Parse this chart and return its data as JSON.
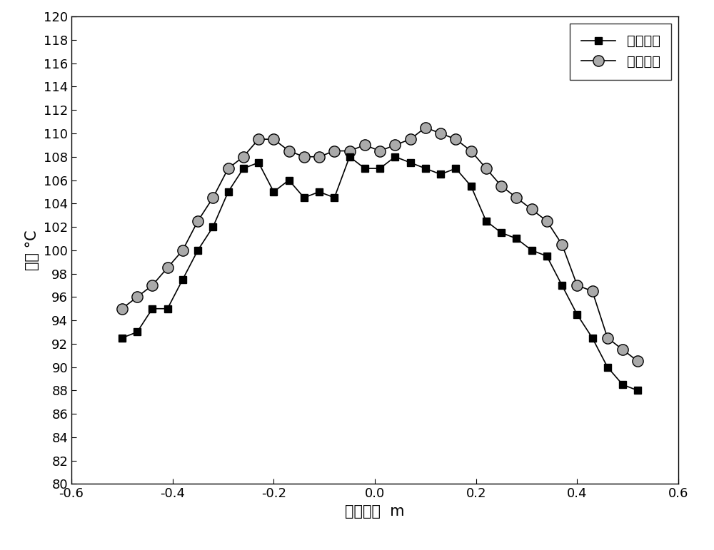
{
  "actual_x": [
    -0.5,
    -0.47,
    -0.44,
    -0.41,
    -0.38,
    -0.35,
    -0.32,
    -0.29,
    -0.26,
    -0.23,
    -0.2,
    -0.17,
    -0.14,
    -0.11,
    -0.08,
    -0.05,
    -0.02,
    0.01,
    0.04,
    0.07,
    0.1,
    0.13,
    0.16,
    0.19,
    0.22,
    0.25,
    0.28,
    0.31,
    0.34,
    0.37,
    0.4,
    0.43,
    0.46,
    0.49,
    0.52
  ],
  "actual_y": [
    92.5,
    93.0,
    95.0,
    95.0,
    97.5,
    100.0,
    102.0,
    105.0,
    107.0,
    107.5,
    105.0,
    106.0,
    104.5,
    105.0,
    104.5,
    108.0,
    107.0,
    107.0,
    108.0,
    107.5,
    107.0,
    106.5,
    107.0,
    105.5,
    102.5,
    101.5,
    101.0,
    100.0,
    99.5,
    97.0,
    94.5,
    92.5,
    90.0,
    88.5,
    88.0
  ],
  "calc_x": [
    -0.5,
    -0.47,
    -0.44,
    -0.41,
    -0.38,
    -0.35,
    -0.32,
    -0.29,
    -0.26,
    -0.23,
    -0.2,
    -0.17,
    -0.14,
    -0.11,
    -0.08,
    -0.05,
    -0.02,
    0.01,
    0.04,
    0.07,
    0.1,
    0.13,
    0.16,
    0.19,
    0.22,
    0.25,
    0.28,
    0.31,
    0.34,
    0.37,
    0.4,
    0.43,
    0.46,
    0.49,
    0.52
  ],
  "calc_y": [
    95.0,
    96.0,
    97.0,
    98.5,
    100.0,
    102.5,
    104.5,
    107.0,
    108.0,
    109.5,
    109.5,
    108.5,
    108.0,
    108.0,
    108.5,
    108.5,
    109.0,
    108.5,
    109.0,
    109.5,
    110.5,
    110.0,
    109.5,
    108.5,
    107.0,
    105.5,
    104.5,
    103.5,
    102.5,
    100.5,
    97.0,
    96.5,
    92.5,
    91.5,
    90.5
  ],
  "xlabel": "带钑宽度  m",
  "ylabel": "温度 °C",
  "xlim": [
    -0.6,
    0.6
  ],
  "ylim": [
    80,
    120
  ],
  "yticks": [
    80,
    82,
    84,
    86,
    88,
    90,
    92,
    94,
    96,
    98,
    100,
    102,
    104,
    106,
    108,
    110,
    112,
    114,
    116,
    118,
    120
  ],
  "xticks": [
    -0.6,
    -0.4,
    -0.2,
    0.0,
    0.2,
    0.4,
    0.6
  ],
  "legend_actual": "实际温度",
  "legend_calc": "计算温度",
  "line_color": "#000000",
  "actual_marker": "s",
  "calc_marker": "o",
  "marker_size_actual": 7,
  "marker_size_calc": 11,
  "linewidth": 1.2,
  "font_size_label": 15,
  "font_size_tick": 13,
  "font_size_legend": 14,
  "legend_loc": "upper right",
  "calc_marker_facecolor": "#aaaaaa",
  "calc_marker_edgecolor": "#000000"
}
